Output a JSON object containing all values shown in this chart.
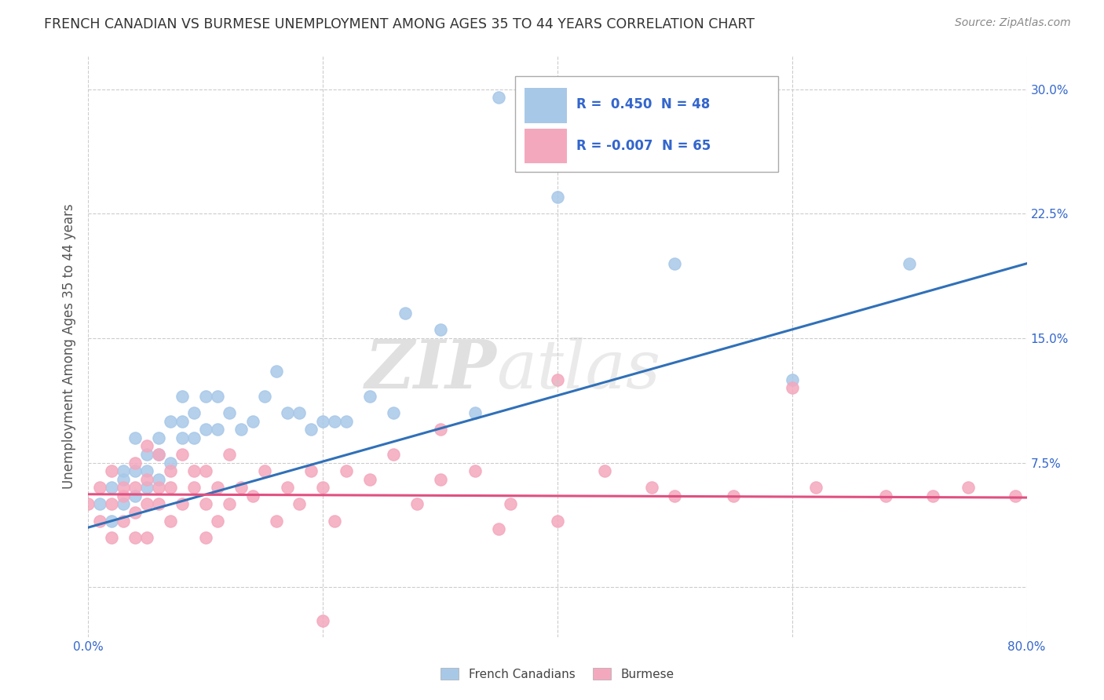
{
  "title": "FRENCH CANADIAN VS BURMESE UNEMPLOYMENT AMONG AGES 35 TO 44 YEARS CORRELATION CHART",
  "source": "Source: ZipAtlas.com",
  "ylabel": "Unemployment Among Ages 35 to 44 years",
  "xlim": [
    0.0,
    0.8
  ],
  "ylim": [
    -0.03,
    0.32
  ],
  "yticks": [
    0.0,
    0.075,
    0.15,
    0.225,
    0.3
  ],
  "ytick_labels": [
    "",
    "7.5%",
    "15.0%",
    "22.5%",
    "30.0%"
  ],
  "xticks": [
    0.0,
    0.8
  ],
  "xtick_labels": [
    "0.0%",
    "80.0%"
  ],
  "french_R": 0.45,
  "french_N": 48,
  "burmese_R": -0.007,
  "burmese_N": 65,
  "french_color": "#a8c8e8",
  "burmese_color": "#f4a8be",
  "french_line_color": "#3070b8",
  "burmese_line_color": "#e05080",
  "legend_text_color": "#3366cc",
  "watermark_zip": "ZIP",
  "watermark_atlas": "atlas",
  "background_color": "#ffffff",
  "grid_color": "#cccccc",
  "french_scatter_x": [
    0.01,
    0.02,
    0.02,
    0.03,
    0.03,
    0.03,
    0.04,
    0.04,
    0.04,
    0.05,
    0.05,
    0.05,
    0.06,
    0.06,
    0.06,
    0.07,
    0.07,
    0.08,
    0.08,
    0.08,
    0.09,
    0.09,
    0.1,
    0.1,
    0.11,
    0.11,
    0.12,
    0.13,
    0.14,
    0.15,
    0.16,
    0.17,
    0.18,
    0.19,
    0.2,
    0.21,
    0.22,
    0.24,
    0.26,
    0.3,
    0.35,
    0.4,
    0.45,
    0.5,
    0.33,
    0.27,
    0.6,
    0.7
  ],
  "french_scatter_y": [
    0.05,
    0.04,
    0.06,
    0.05,
    0.065,
    0.07,
    0.055,
    0.07,
    0.09,
    0.06,
    0.07,
    0.08,
    0.065,
    0.08,
    0.09,
    0.075,
    0.1,
    0.09,
    0.1,
    0.115,
    0.09,
    0.105,
    0.095,
    0.115,
    0.095,
    0.115,
    0.105,
    0.095,
    0.1,
    0.115,
    0.13,
    0.105,
    0.105,
    0.095,
    0.1,
    0.1,
    0.1,
    0.115,
    0.105,
    0.155,
    0.295,
    0.235,
    0.28,
    0.195,
    0.105,
    0.165,
    0.125,
    0.195
  ],
  "burmese_scatter_x": [
    0.0,
    0.01,
    0.01,
    0.02,
    0.02,
    0.02,
    0.03,
    0.03,
    0.03,
    0.04,
    0.04,
    0.04,
    0.04,
    0.05,
    0.05,
    0.05,
    0.05,
    0.06,
    0.06,
    0.06,
    0.07,
    0.07,
    0.07,
    0.08,
    0.08,
    0.09,
    0.09,
    0.1,
    0.1,
    0.11,
    0.11,
    0.12,
    0.12,
    0.13,
    0.14,
    0.15,
    0.16,
    0.17,
    0.18,
    0.19,
    0.2,
    0.21,
    0.22,
    0.24,
    0.26,
    0.28,
    0.3,
    0.33,
    0.36,
    0.4,
    0.44,
    0.48,
    0.55,
    0.62,
    0.68,
    0.72,
    0.75,
    0.79,
    0.3,
    0.4,
    0.5,
    0.6,
    0.1,
    0.2,
    0.35
  ],
  "burmese_scatter_y": [
    0.05,
    0.04,
    0.06,
    0.03,
    0.05,
    0.07,
    0.04,
    0.055,
    0.06,
    0.03,
    0.045,
    0.06,
    0.075,
    0.05,
    0.03,
    0.065,
    0.085,
    0.05,
    0.06,
    0.08,
    0.04,
    0.06,
    0.07,
    0.05,
    0.08,
    0.06,
    0.07,
    0.05,
    0.07,
    0.06,
    0.04,
    0.05,
    0.08,
    0.06,
    0.055,
    0.07,
    0.04,
    0.06,
    0.05,
    0.07,
    0.06,
    0.04,
    0.07,
    0.065,
    0.08,
    0.05,
    0.065,
    0.07,
    0.05,
    0.04,
    0.07,
    0.06,
    0.055,
    0.06,
    0.055,
    0.055,
    0.06,
    0.055,
    0.095,
    0.125,
    0.055,
    0.12,
    0.03,
    -0.02,
    0.035
  ],
  "french_line_x": [
    0.0,
    0.8
  ],
  "french_line_y": [
    0.036,
    0.195
  ],
  "burmese_line_x": [
    0.0,
    0.8
  ],
  "burmese_line_y": [
    0.056,
    0.054
  ]
}
